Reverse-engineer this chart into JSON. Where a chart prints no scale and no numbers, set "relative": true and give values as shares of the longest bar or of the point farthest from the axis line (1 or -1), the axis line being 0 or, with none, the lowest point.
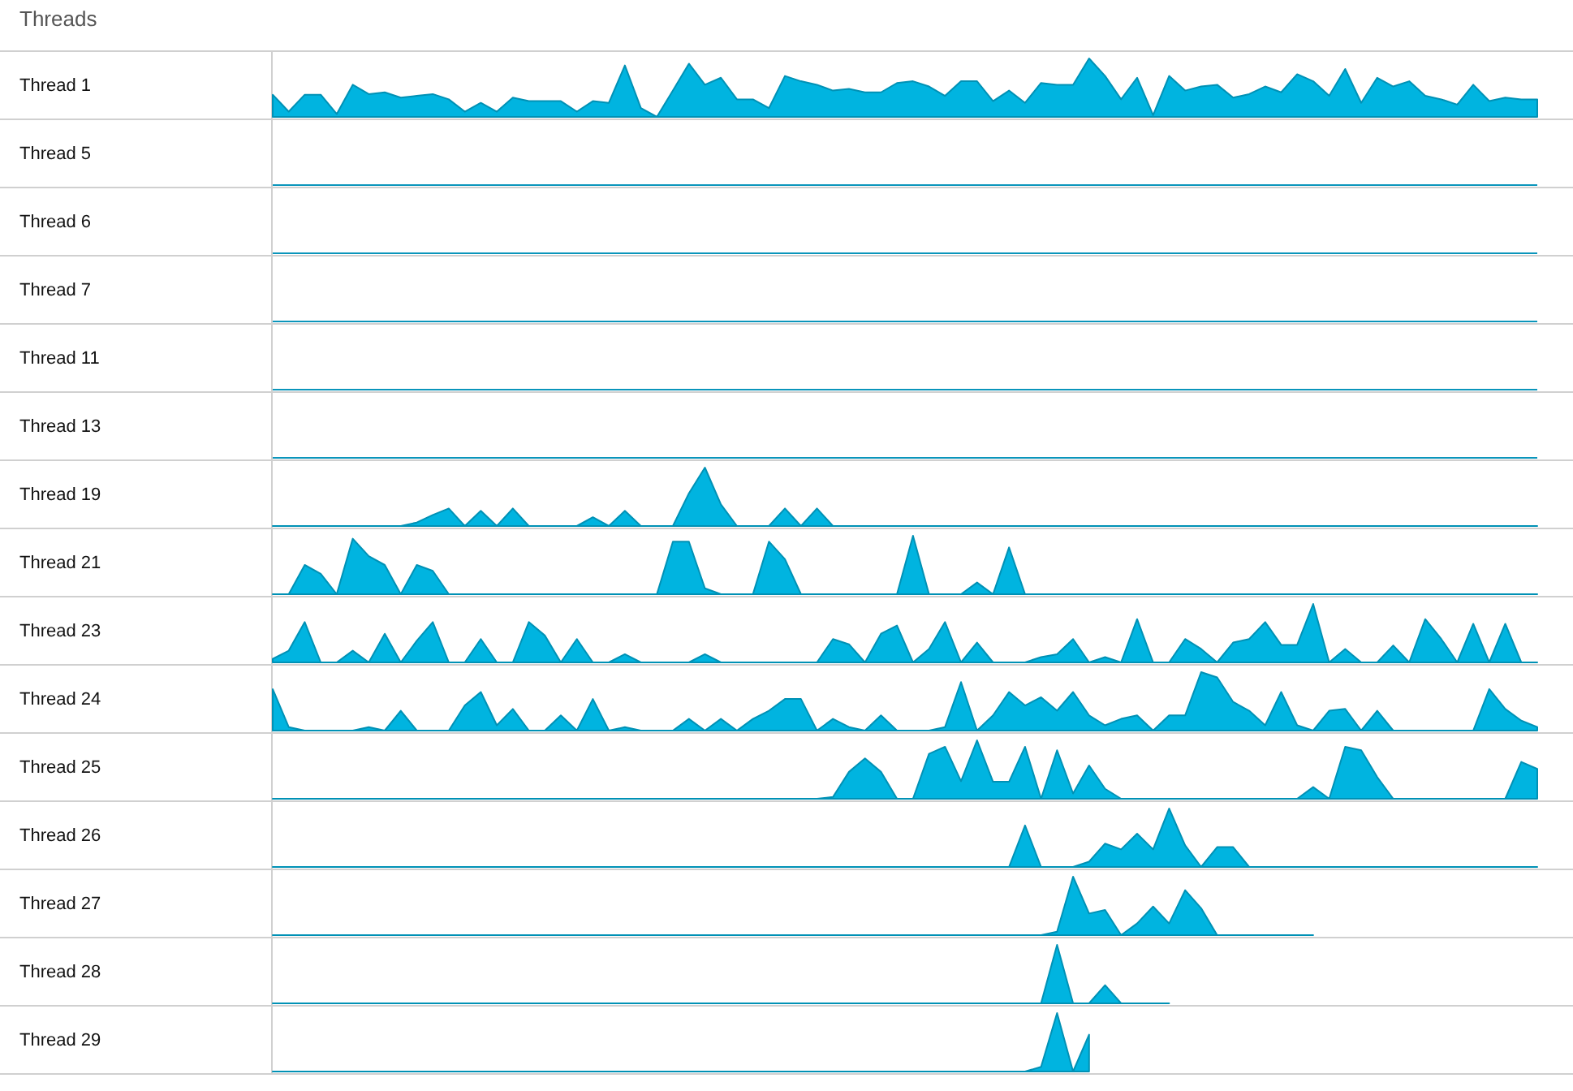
{
  "chart_data": [
    {
      "type": "other",
      "title": "Threads"
    },
    {
      "type": "area",
      "ylabel": "Thread 1",
      "relative": true,
      "color": "#00b4e0",
      "categories": [
        null,
        null,
        null,
        null,
        null,
        null,
        null,
        null,
        null,
        null,
        null,
        null,
        null,
        null,
        null,
        null,
        null,
        null,
        null,
        null,
        null,
        null,
        null,
        null,
        null,
        null,
        null,
        null,
        null,
        null,
        null,
        null,
        null,
        null,
        null,
        null,
        null,
        null,
        null,
        null,
        null,
        null,
        null,
        null,
        null,
        null,
        null,
        null,
        null,
        null,
        null,
        null,
        null,
        null,
        null,
        null,
        null,
        null,
        null,
        null,
        null,
        null,
        null,
        null,
        null,
        null,
        null,
        null,
        null,
        null,
        null,
        null,
        null,
        null,
        null,
        null,
        null,
        null,
        null,
        null
      ],
      "values": [
        0.38,
        0.09,
        0.38,
        0.38,
        0.05,
        0.55,
        0.39,
        0.42,
        0.33,
        0.36,
        0.39,
        0.3,
        0.09,
        0.24,
        0.09,
        0.33,
        0.27,
        0.27,
        0.27,
        0.09,
        0.27,
        0.24,
        0.88,
        0.15,
        0,
        0.45,
        0.91,
        0.55,
        0.67,
        0.3,
        0.3,
        0.15,
        0.7,
        0.61,
        0.55,
        0.45,
        0.48,
        0.42,
        0.42,
        0.58,
        0.61,
        0.52,
        0.36,
        0.61,
        0.61,
        0.27,
        0.45,
        0.24,
        0.58,
        0.55,
        0.55,
        1,
        0.7,
        0.3,
        0.67,
        0.03,
        0.7,
        0.45,
        0.52,
        0.55,
        0.33,
        0.39,
        0.52,
        0.42,
        0.73,
        0.61,
        0.36,
        0.82,
        0.24,
        0.67,
        0.52,
        0.61,
        0.36,
        0.3,
        0.21,
        0.55,
        0.27,
        0.33,
        0.3,
        0.3
      ]
    },
    {
      "type": "other",
      "ylabel": "Thread 5"
    },
    {
      "type": "other",
      "ylabel": "Thread 6"
    },
    {
      "type": "other",
      "ylabel": "Thread 7"
    },
    {
      "type": "other",
      "ylabel": "Thread 11"
    },
    {
      "type": "other",
      "ylabel": "Thread 13"
    },
    {
      "type": "area",
      "ylabel": "Thread 19",
      "relative": true,
      "color": "#00b4e0",
      "categories": [
        null,
        null,
        null,
        null,
        null,
        null,
        null,
        null,
        null,
        null,
        null,
        null,
        null,
        null,
        null,
        null,
        null,
        null,
        null,
        null,
        null,
        null,
        null,
        null,
        null,
        null,
        null,
        null,
        null,
        null,
        null,
        null,
        null,
        null,
        null,
        null,
        null,
        null,
        null,
        null,
        null,
        null,
        null,
        null,
        null,
        null,
        null,
        null,
        null,
        null,
        null,
        null,
        null,
        null,
        null,
        null,
        null,
        null,
        null,
        null,
        null,
        null,
        null,
        null,
        null,
        null,
        null,
        null,
        null,
        null,
        null,
        null,
        null,
        null,
        null,
        null,
        null,
        null,
        null,
        null
      ],
      "values": [
        0,
        0,
        0,
        0,
        0,
        0,
        0,
        0,
        0,
        0.06,
        0.19,
        0.3,
        0,
        0.26,
        0,
        0.3,
        0,
        0,
        0,
        0,
        0.15,
        0,
        0.26,
        0,
        0,
        0,
        0.56,
        1,
        0.37,
        0,
        0,
        0,
        0.3,
        0,
        0.3,
        0,
        0,
        0,
        0,
        0,
        0,
        0,
        0,
        0,
        0,
        0,
        0,
        0,
        0,
        0,
        0,
        0,
        0,
        0,
        0,
        0,
        0,
        0,
        0,
        0,
        0,
        0,
        0,
        0,
        0,
        0,
        0,
        0,
        0,
        0,
        0,
        0,
        0,
        0,
        0,
        0,
        0,
        0,
        0,
        0
      ]
    },
    {
      "type": "area",
      "ylabel": "Thread 21",
      "relative": true,
      "color": "#00b4e0",
      "categories": [
        null,
        null,
        null,
        null,
        null,
        null,
        null,
        null,
        null,
        null,
        null,
        null,
        null,
        null,
        null,
        null,
        null,
        null,
        null,
        null,
        null,
        null,
        null,
        null,
        null,
        null,
        null,
        null,
        null,
        null,
        null,
        null,
        null,
        null,
        null,
        null,
        null,
        null,
        null,
        null,
        null,
        null,
        null,
        null,
        null,
        null,
        null,
        null,
        null,
        null,
        null,
        null,
        null,
        null,
        null,
        null,
        null,
        null,
        null,
        null,
        null,
        null,
        null,
        null,
        null,
        null,
        null,
        null,
        null,
        null,
        null,
        null,
        null,
        null,
        null,
        null,
        null,
        null,
        null,
        null
      ],
      "values": [
        0,
        0,
        0.5,
        0.35,
        0,
        0.95,
        0.65,
        0.5,
        0,
        0.5,
        0.4,
        0,
        0,
        0,
        0,
        0,
        0,
        0,
        0,
        0,
        0,
        0,
        0,
        0,
        0,
        0.9,
        0.9,
        0.1,
        0,
        0,
        0,
        0.9,
        0.6,
        0,
        0,
        0,
        0,
        0,
        0,
        0,
        1,
        0,
        0,
        0,
        0.2,
        0,
        0.8,
        0,
        0,
        0,
        0,
        0,
        0,
        0,
        0,
        0,
        0,
        0,
        0,
        0,
        0,
        0,
        0,
        0,
        0,
        0,
        0,
        0,
        0,
        0,
        0,
        0,
        0,
        0,
        0,
        0,
        0,
        0,
        0,
        0
      ]
    },
    {
      "type": "area",
      "ylabel": "Thread 23",
      "relative": true,
      "color": "#00b4e0",
      "categories": [
        null,
        null,
        null,
        null,
        null,
        null,
        null,
        null,
        null,
        null,
        null,
        null,
        null,
        null,
        null,
        null,
        null,
        null,
        null,
        null,
        null,
        null,
        null,
        null,
        null,
        null,
        null,
        null,
        null,
        null,
        null,
        null,
        null,
        null,
        null,
        null,
        null,
        null,
        null,
        null,
        null,
        null,
        null,
        null,
        null,
        null,
        null,
        null,
        null,
        null,
        null,
        null,
        null,
        null,
        null,
        null,
        null,
        null,
        null,
        null,
        null,
        null,
        null,
        null,
        null,
        null,
        null,
        null,
        null,
        null,
        null,
        null,
        null,
        null,
        null,
        null,
        null,
        null,
        null,
        null
      ],
      "values": [
        0.06,
        0.2,
        0.69,
        0,
        0,
        0.2,
        0,
        0.49,
        0,
        0.37,
        0.69,
        0,
        0,
        0.4,
        0,
        0,
        0.69,
        0.46,
        0,
        0.4,
        0,
        0,
        0.14,
        0,
        0,
        0,
        0,
        0.14,
        0,
        0,
        0,
        0,
        0,
        0,
        0,
        0.4,
        0.31,
        0,
        0.49,
        0.63,
        0,
        0.23,
        0.69,
        0,
        0.34,
        0,
        0,
        0,
        0.09,
        0.14,
        0.4,
        0,
        0.09,
        0,
        0.74,
        0,
        0,
        0.4,
        0.23,
        0,
        0.34,
        0.4,
        0.69,
        0.3,
        0.3,
        1,
        0,
        0.23,
        0,
        0,
        0.29,
        0,
        0.74,
        0.4,
        0,
        0.66,
        0,
        0.66,
        0,
        0
      ]
    },
    {
      "type": "area",
      "ylabel": "Thread 24",
      "relative": true,
      "color": "#00b4e0",
      "categories": [
        null,
        null,
        null,
        null,
        null,
        null,
        null,
        null,
        null,
        null,
        null,
        null,
        null,
        null,
        null,
        null,
        null,
        null,
        null,
        null,
        null,
        null,
        null,
        null,
        null,
        null,
        null,
        null,
        null,
        null,
        null,
        null,
        null,
        null,
        null,
        null,
        null,
        null,
        null,
        null,
        null,
        null,
        null,
        null,
        null,
        null,
        null,
        null,
        null,
        null,
        null,
        null,
        null,
        null,
        null,
        null,
        null,
        null,
        null,
        null,
        null,
        null,
        null,
        null,
        null,
        null,
        null,
        null,
        null,
        null,
        null,
        null,
        null,
        null,
        null,
        null,
        null,
        null,
        null,
        null
      ],
      "values": [
        0.71,
        0.06,
        0,
        0,
        0,
        0,
        0.06,
        0,
        0.34,
        0,
        0,
        0,
        0.43,
        0.66,
        0.09,
        0.37,
        0,
        0,
        0.26,
        0,
        0.54,
        0,
        0.06,
        0,
        0,
        0,
        0.2,
        0,
        0.2,
        0,
        0.2,
        0.34,
        0.54,
        0.54,
        0,
        0.2,
        0.06,
        0,
        0.26,
        0,
        0,
        0,
        0.06,
        0.83,
        0,
        0.26,
        0.66,
        0.43,
        0.57,
        0.34,
        0.66,
        0.26,
        0.09,
        0.2,
        0.26,
        0,
        0.26,
        0.26,
        1,
        0.91,
        0.49,
        0.34,
        0.09,
        0.66,
        0.09,
        0,
        0.34,
        0.37,
        0,
        0.34,
        0,
        0,
        0,
        0,
        0,
        0,
        0.71,
        0.37,
        0.17,
        0.06
      ]
    },
    {
      "type": "area",
      "ylabel": "Thread 25",
      "relative": true,
      "color": "#00b4e0",
      "categories": [
        null,
        null,
        null,
        null,
        null,
        null,
        null,
        null,
        null,
        null,
        null,
        null,
        null,
        null,
        null,
        null,
        null,
        null,
        null,
        null,
        null,
        null,
        null,
        null,
        null,
        null,
        null,
        null,
        null,
        null,
        null,
        null,
        null,
        null,
        null,
        null,
        null,
        null,
        null,
        null,
        null,
        null,
        null,
        null,
        null,
        null,
        null,
        null,
        null,
        null,
        null,
        null,
        null,
        null,
        null,
        null,
        null,
        null,
        null,
        null,
        null,
        null,
        null,
        null,
        null,
        null,
        null,
        null,
        null,
        null,
        null,
        null,
        null,
        null,
        null,
        null,
        null,
        null,
        null,
        null
      ],
      "values": [
        0,
        0,
        0,
        0,
        0,
        0,
        0,
        0,
        0,
        0,
        0,
        0,
        0,
        0,
        0,
        0,
        0,
        0,
        0,
        0,
        0,
        0,
        0,
        0,
        0,
        0,
        0,
        0,
        0,
        0,
        0,
        0,
        0,
        0,
        0,
        0.03,
        0.46,
        0.69,
        0.46,
        0,
        0,
        0.77,
        0.89,
        0.3,
        1,
        0.29,
        0.29,
        0.89,
        0,
        0.83,
        0.09,
        0.57,
        0.17,
        0,
        0,
        0,
        0,
        0,
        0,
        0,
        0,
        0,
        0,
        0,
        0,
        0.2,
        0,
        0.89,
        0.83,
        0.37,
        0,
        0,
        0,
        0,
        0,
        0,
        0,
        0,
        0.63,
        0.51
      ]
    },
    {
      "type": "area",
      "ylabel": "Thread 26",
      "relative": true,
      "color": "#00b4e0",
      "categories": [
        null,
        null,
        null,
        null,
        null,
        null,
        null,
        null,
        null,
        null,
        null,
        null,
        null,
        null,
        null,
        null,
        null,
        null,
        null,
        null,
        null,
        null,
        null,
        null,
        null,
        null,
        null,
        null,
        null,
        null,
        null,
        null,
        null,
        null,
        null,
        null,
        null,
        null,
        null,
        null,
        null,
        null,
        null,
        null,
        null,
        null,
        null,
        null,
        null,
        null,
        null,
        null,
        null,
        null,
        null,
        null,
        null,
        null,
        null,
        null,
        null,
        null,
        null,
        null,
        null,
        null,
        null,
        null,
        null,
        null,
        null,
        null,
        null,
        null,
        null,
        null,
        null,
        null,
        null,
        null
      ],
      "values": [
        0,
        0,
        0,
        0,
        0,
        0,
        0,
        0,
        0,
        0,
        0,
        0,
        0,
        0,
        0,
        0,
        0,
        0,
        0,
        0,
        0,
        0,
        0,
        0,
        0,
        0,
        0,
        0,
        0,
        0,
        0,
        0,
        0,
        0,
        0,
        0,
        0,
        0,
        0,
        0,
        0,
        0,
        0,
        0,
        0,
        0,
        0,
        0.71,
        0,
        0,
        0,
        0.09,
        0.4,
        0.3,
        0.57,
        0.3,
        1,
        0.37,
        0,
        0.34,
        0.34,
        0,
        0,
        0,
        0,
        0,
        0,
        0,
        0,
        0,
        0,
        0,
        0,
        0,
        0,
        0,
        0,
        0,
        0,
        0
      ]
    },
    {
      "type": "area",
      "ylabel": "Thread 27",
      "relative": true,
      "color": "#00b4e0",
      "categories": [
        null,
        null,
        null,
        null,
        null,
        null,
        null,
        null,
        null,
        null,
        null,
        null,
        null,
        null,
        null,
        null,
        null,
        null,
        null,
        null,
        null,
        null,
        null,
        null,
        null,
        null,
        null,
        null,
        null,
        null,
        null,
        null,
        null,
        null,
        null,
        null,
        null,
        null,
        null,
        null,
        null,
        null,
        null,
        null,
        null,
        null,
        null,
        null,
        null,
        null,
        null,
        null,
        null,
        null,
        null,
        null,
        null,
        null,
        null,
        null,
        null,
        null,
        null,
        null,
        null,
        null,
        null,
        null,
        null,
        null,
        null,
        null,
        null,
        null,
        null,
        null,
        null,
        null,
        null,
        null
      ],
      "values": [
        0,
        0,
        0,
        0,
        0,
        0,
        0,
        0,
        0,
        0,
        0,
        0,
        0,
        0,
        0,
        0,
        0,
        0,
        0,
        0,
        0,
        0,
        0,
        0,
        0,
        0,
        0,
        0,
        0,
        0,
        0,
        0,
        0,
        0,
        0,
        0,
        0,
        0,
        0,
        0,
        0,
        0,
        0,
        0,
        0,
        0,
        0,
        0,
        0,
        0.06,
        1,
        0.37,
        0.43,
        0,
        0.2,
        0.49,
        0.2,
        0.77,
        0.46,
        0,
        0,
        0,
        0,
        0,
        0,
        0,
        null,
        null,
        null,
        null,
        null,
        null,
        null,
        null,
        null,
        null,
        null,
        null,
        null,
        null
      ]
    },
    {
      "type": "area",
      "ylabel": "Thread 28",
      "relative": true,
      "color": "#00b4e0",
      "categories": [
        null,
        null,
        null,
        null,
        null,
        null,
        null,
        null,
        null,
        null,
        null,
        null,
        null,
        null,
        null,
        null,
        null,
        null,
        null,
        null,
        null,
        null,
        null,
        null,
        null,
        null,
        null,
        null,
        null,
        null,
        null,
        null,
        null,
        null,
        null,
        null,
        null,
        null,
        null,
        null,
        null,
        null,
        null,
        null,
        null,
        null,
        null,
        null,
        null,
        null,
        null,
        null,
        null,
        null,
        null,
        null,
        null,
        null,
        null,
        null,
        null,
        null,
        null,
        null,
        null,
        null,
        null,
        null,
        null,
        null,
        null,
        null,
        null,
        null,
        null,
        null,
        null,
        null,
        null,
        null
      ],
      "values": [
        0,
        0,
        0,
        0,
        0,
        0,
        0,
        0,
        0,
        0,
        0,
        0,
        0,
        0,
        0,
        0,
        0,
        0,
        0,
        0,
        0,
        0,
        0,
        0,
        0,
        0,
        0,
        0,
        0,
        0,
        0,
        0,
        0,
        0,
        0,
        0,
        0,
        0,
        0,
        0,
        0,
        0,
        0,
        0,
        0,
        0,
        0,
        0,
        0,
        1,
        0,
        0,
        0.31,
        0,
        0,
        0,
        0,
        null,
        null,
        null,
        null,
        null,
        null,
        null,
        null,
        null,
        null,
        null,
        null,
        null,
        null,
        null,
        null,
        null,
        null,
        null,
        null,
        null,
        null,
        null
      ]
    },
    {
      "type": "area",
      "ylabel": "Thread 29",
      "relative": true,
      "color": "#00b4e0",
      "categories": [
        null,
        null,
        null,
        null,
        null,
        null,
        null,
        null,
        null,
        null,
        null,
        null,
        null,
        null,
        null,
        null,
        null,
        null,
        null,
        null,
        null,
        null,
        null,
        null,
        null,
        null,
        null,
        null,
        null,
        null,
        null,
        null,
        null,
        null,
        null,
        null,
        null,
        null,
        null,
        null,
        null,
        null,
        null,
        null,
        null,
        null,
        null,
        null,
        null,
        null,
        null,
        null,
        null,
        null,
        null,
        null,
        null,
        null,
        null,
        null,
        null,
        null,
        null,
        null,
        null,
        null,
        null,
        null,
        null,
        null,
        null,
        null,
        null,
        null,
        null,
        null,
        null,
        null,
        null,
        null
      ],
      "values": [
        0,
        0,
        0,
        0,
        0,
        0,
        0,
        0,
        0,
        0,
        0,
        0,
        0,
        0,
        0,
        0,
        0,
        0,
        0,
        0,
        0,
        0,
        0,
        0,
        0,
        0,
        0,
        0,
        0,
        0,
        0,
        0,
        0,
        0,
        0,
        0,
        0,
        0,
        0,
        0,
        0,
        0,
        0,
        0,
        0,
        0,
        0,
        0,
        0.08,
        1,
        0,
        0.63,
        null,
        null,
        null,
        null,
        null,
        null,
        null,
        null,
        null,
        null,
        null,
        null,
        null,
        null,
        null,
        null,
        null,
        null,
        null,
        null,
        null,
        null,
        null,
        null,
        null,
        null,
        null,
        null
      ]
    }
  ]
}
